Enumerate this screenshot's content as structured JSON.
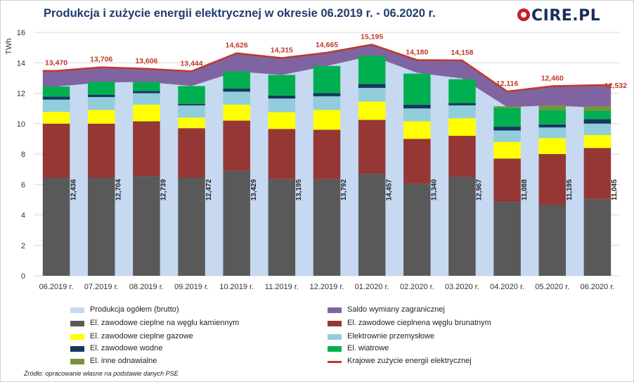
{
  "title": "Produkcja i zużycie energii elektrycznej w okresie 06.2019 r. - 06.2020 r.",
  "logo_text": "CIRE.PL",
  "source": "Źródło: opracowanie własne na podstawie danych PSE",
  "chart_data": {
    "type": "bar",
    "ylabel": "TWh",
    "ylim": [
      0,
      16
    ],
    "yticks": [
      0,
      2,
      4,
      6,
      8,
      10,
      12,
      14,
      16
    ],
    "grid": true,
    "legend_position": "bottom",
    "categories": [
      "06.2019 r.",
      "07.2019 r.",
      "08.2019 r.",
      "09.2019 r.",
      "10.2019 r.",
      "11.2019 r.",
      "12.2019 r.",
      "01.2020 r.",
      "02.2020 r.",
      "03.2020 r.",
      "04.2020 r.",
      "05.2020 r.",
      "06.2020 r."
    ],
    "production_total": {
      "name": "Produkcja ogółem (brutto)",
      "color": "#c6d9f1",
      "values": [
        12.436,
        12.704,
        12.739,
        12.472,
        13.429,
        13.195,
        13.792,
        14.457,
        13.34,
        12.967,
        11.088,
        11.195,
        11.045
      ],
      "labels": [
        "12,436",
        "12,704",
        "12,739",
        "12,472",
        "13,429",
        "13,195",
        "13,792",
        "14,457",
        "13,340",
        "12,967",
        "11,088",
        "11,195",
        "11,045"
      ]
    },
    "exchange_balance": {
      "name": "Saldo wymiany zagranicznej",
      "color": "#8064a2"
    },
    "consumption": {
      "name": "Krajowe zużycie energii elektrycznej",
      "color": "#c0392b",
      "values": [
        13.47,
        13.706,
        13.606,
        13.444,
        14.626,
        14.315,
        14.665,
        15.195,
        14.18,
        14.158,
        12.116,
        12.46,
        12.532
      ],
      "labels": [
        "13,470",
        "13,706",
        "13,606",
        "13,444",
        "14,626",
        "14,315",
        "14,665",
        "15,195",
        "14,180",
        "14,158",
        "12,116",
        "12,460",
        "12,532"
      ]
    },
    "series": [
      {
        "name": "El. zawodowe cieplne na węglu kamiennym",
        "color": "#595959",
        "values": [
          6.45,
          6.45,
          6.55,
          6.45,
          6.9,
          6.35,
          6.35,
          6.7,
          6.05,
          6.5,
          4.85,
          4.65,
          5.05
        ]
      },
      {
        "name": "El. zawodowe cieplnena węglu brunatnym",
        "color": "#953735",
        "values": [
          3.55,
          3.55,
          3.6,
          3.25,
          3.3,
          3.3,
          3.25,
          3.55,
          2.95,
          2.7,
          2.85,
          3.35,
          3.35
        ]
      },
      {
        "name": "El. zawodowe cieplne gazowe",
        "color": "#ffff00",
        "values": [
          0.78,
          0.9,
          1.1,
          0.7,
          1.05,
          1.1,
          1.3,
          1.2,
          1.15,
          1.15,
          1.1,
          1.05,
          0.85
        ]
      },
      {
        "name": "Elektrownie przemysłowe",
        "color": "#92cddc",
        "values": [
          0.8,
          0.85,
          0.75,
          0.8,
          0.85,
          0.9,
          0.9,
          0.9,
          0.85,
          0.85,
          0.75,
          0.7,
          0.75
        ]
      },
      {
        "name": "El. zawodowe wodne",
        "color": "#17375e",
        "values": [
          0.2,
          0.15,
          0.15,
          0.1,
          0.2,
          0.2,
          0.2,
          0.25,
          0.25,
          0.15,
          0.25,
          0.2,
          0.3
        ]
      },
      {
        "name": "El. wiatrowe",
        "color": "#00b050",
        "values": [
          0.66,
          0.85,
          0.59,
          1.17,
          1.13,
          1.35,
          1.79,
          1.86,
          2.04,
          1.57,
          1.24,
          0.95,
          0.55
        ]
      },
      {
        "name": "El. inne odnawialne",
        "color": "#77933c",
        "values": [
          0,
          0,
          0,
          0,
          0,
          0,
          0,
          0,
          0,
          0,
          0.1,
          0.3,
          0.3
        ]
      }
    ]
  }
}
